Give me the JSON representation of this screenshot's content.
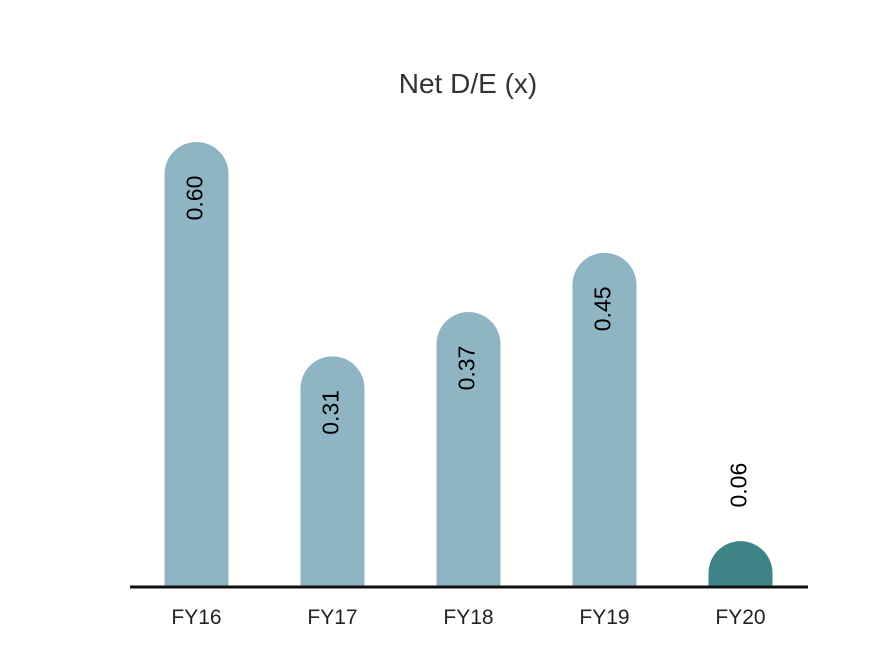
{
  "chart_data": {
    "type": "bar",
    "title": "Net D/E (x)",
    "xlabel": "",
    "ylabel": "",
    "categories": [
      "FY16",
      "FY17",
      "FY18",
      "FY19",
      "FY20"
    ],
    "values": [
      0.6,
      0.31,
      0.37,
      0.45,
      0.06
    ],
    "data_labels": [
      "0.60",
      "0.31",
      "0.37",
      "0.45",
      "0.06"
    ],
    "ylim": [
      0,
      0.6
    ],
    "grid": false,
    "legend": "none",
    "bar_shape": "rounded-top",
    "label_orientation": "vertical",
    "colors": {
      "default_bar": "#8fb5c4",
      "highlight_bar": "#3e8487",
      "axis": "#111111"
    },
    "highlight_categories": [
      "FY20"
    ]
  }
}
